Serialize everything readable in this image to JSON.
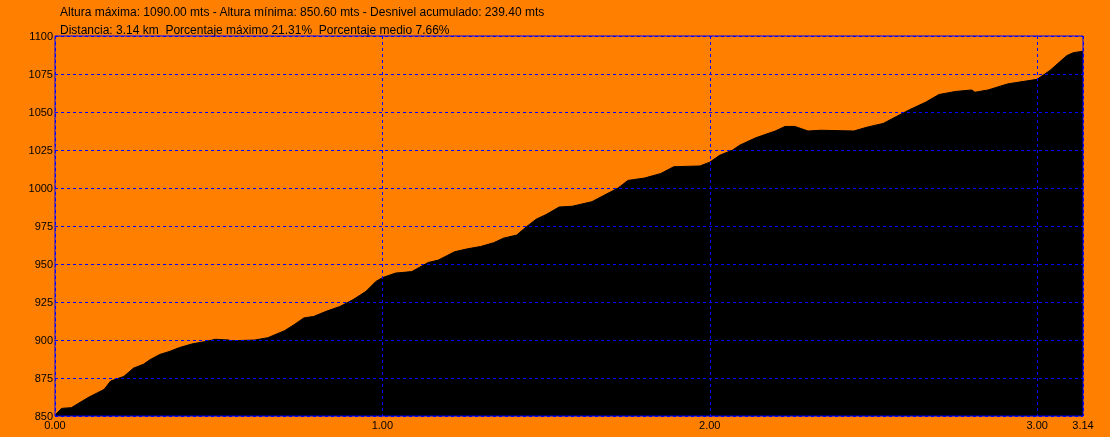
{
  "chart_data": {
    "type": "area",
    "title": "Altura máxima: 1090.00 mts - Altura mínima: 850.60 mts - Desnivel acumulado: 239.40 mts",
    "subtitle": "Distancia: 3.14 km  Porcentaje máximo 21.31%  Porcentaje medio 7.66%",
    "x": [
      0,
      0.02,
      0.05,
      0.1,
      0.15,
      0.17,
      0.21,
      0.24,
      0.27,
      0.29,
      0.32,
      0.35,
      0.38,
      0.42,
      0.46,
      0.49,
      0.53,
      0.54,
      0.61,
      0.65,
      0.7,
      0.73,
      0.76,
      0.79,
      0.83,
      0.87,
      0.91,
      0.95,
      0.98,
      1.0,
      1.02,
      1.04,
      1.09,
      1.14,
      1.17,
      1.22,
      1.26,
      1.3,
      1.34,
      1.37,
      1.41,
      1.44,
      1.47,
      1.5,
      1.54,
      1.58,
      1.64,
      1.68,
      1.72,
      1.75,
      1.8,
      1.85,
      1.89,
      1.97,
      2.0,
      2.03,
      2.07,
      2.09,
      2.14,
      2.2,
      2.23,
      2.26,
      2.3,
      2.34,
      2.44,
      2.48,
      2.53,
      2.57,
      2.61,
      2.66,
      2.7,
      2.75,
      2.8,
      2.81,
      2.85,
      2.91,
      2.97,
      3.0,
      3.04,
      3.09,
      3.11,
      3.14
    ],
    "values": [
      850.6,
      855,
      855.5,
      862,
      867.5,
      873,
      876,
      881.5,
      884,
      887,
      890.5,
      892.5,
      895,
      897.5,
      899,
      900.5,
      900,
      899.5,
      900,
      901.5,
      906,
      910,
      914.5,
      915.5,
      919,
      922,
      926.5,
      932,
      938.5,
      941,
      942.5,
      944,
      945,
      951,
      952.5,
      958,
      960,
      961.5,
      964,
      967,
      969,
      974.5,
      979.5,
      982.5,
      987.5,
      988,
      991,
      995.5,
      1000,
      1005,
      1006.5,
      1009.5,
      1014,
      1014.5,
      1017,
      1021.5,
      1025,
      1028,
      1033,
      1037.5,
      1040.5,
      1040.5,
      1037.5,
      1038,
      1037.5,
      1040,
      1042.5,
      1047,
      1051.5,
      1056.5,
      1061.5,
      1063.5,
      1064.5,
      1063,
      1064.5,
      1068.5,
      1070.5,
      1071.5,
      1077.5,
      1087,
      1089,
      1090
    ],
    "color": "#000000",
    "xlim": [
      0,
      3.14
    ],
    "ylim": [
      850,
      1100
    ],
    "xticks": [
      {
        "value": 0,
        "label": "0.00"
      },
      {
        "value": 1,
        "label": "1.00"
      },
      {
        "value": 2,
        "label": "2.00"
      },
      {
        "value": 3,
        "label": "3.00"
      },
      {
        "value": 3.14,
        "label": "3.14"
      }
    ],
    "yticks": [
      850,
      875,
      900,
      925,
      950,
      975,
      1000,
      1025,
      1050,
      1075,
      1100
    ],
    "grid": true
  }
}
